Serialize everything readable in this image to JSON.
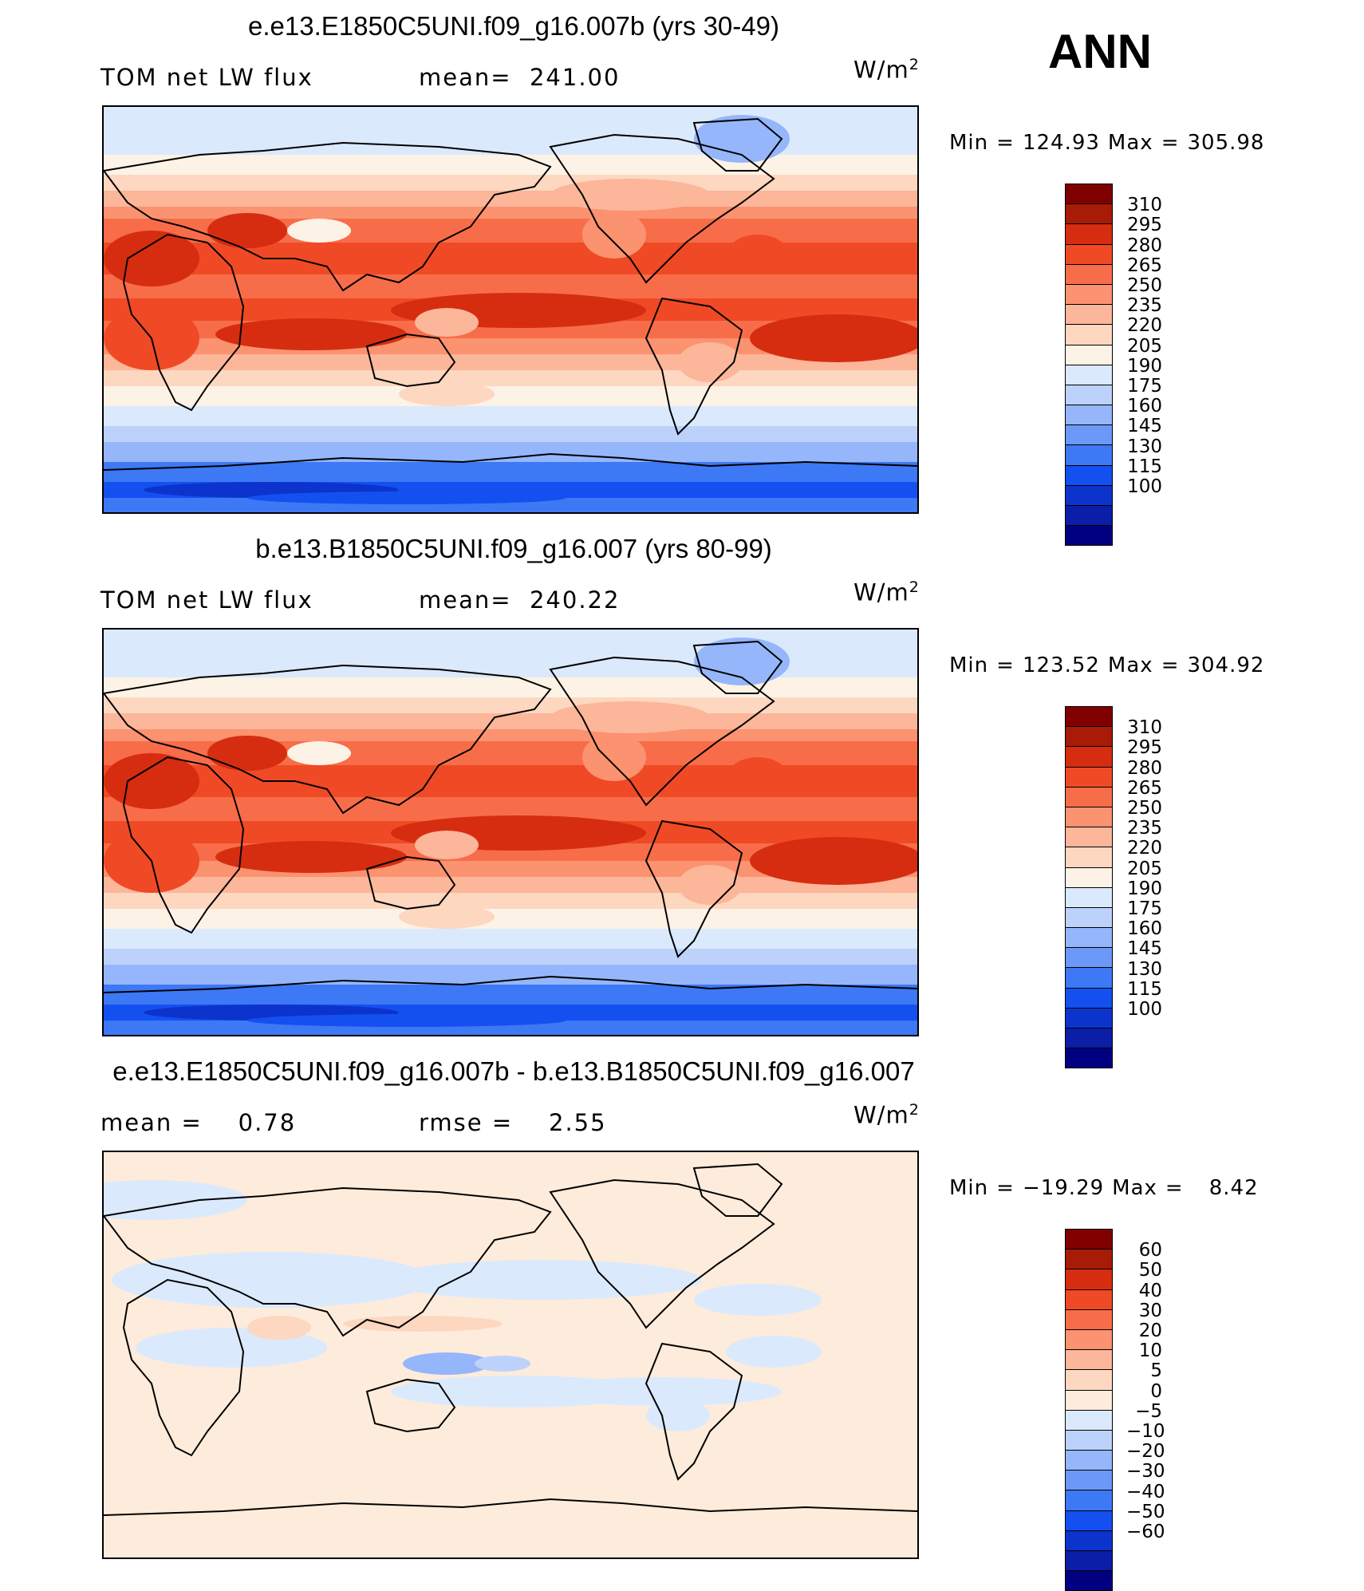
{
  "season_label": "ANN",
  "palette_abs": [
    "#000080",
    "#0a1ea8",
    "#0d33cd",
    "#1450f0",
    "#3d78f5",
    "#6c99f8",
    "#95b6fa",
    "#bcd2fb",
    "#dbe9fc",
    "#fdf2e6",
    "#fdd7c0",
    "#fcb69a",
    "#fb9270",
    "#f86d49",
    "#ef4a25",
    "#d62d10",
    "#a81b06",
    "#800000"
  ],
  "palette_diff": [
    "#000080",
    "#0a1ea8",
    "#0d33cd",
    "#1450f0",
    "#3d78f5",
    "#6c99f8",
    "#95b6fa",
    "#bcd2fb",
    "#dbe9fc",
    "#fdecdb",
    "#fdd7c0",
    "#fcb69a",
    "#fb9270",
    "#f86d49",
    "#ef4a25",
    "#d62d10",
    "#a81b06",
    "#800000"
  ],
  "panels": [
    {
      "title": "e.e13.E1850C5UNI.f09_g16.007b (yrs 30-49)",
      "sub_left": "TOM net LW flux",
      "sub_mid_label": "mean=",
      "sub_mid_value": "241.00",
      "units": "W/m",
      "units_sup": "2",
      "min_label": "Min",
      "min_value": "124.93",
      "max_label": "Max",
      "max_value": "305.98",
      "levels": [
        "310",
        "295",
        "280",
        "265",
        "250",
        "235",
        "220",
        "205",
        "190",
        "175",
        "160",
        "145",
        "130",
        "115",
        "100"
      ],
      "map_mean": 241.0
    },
    {
      "title": "b.e13.B1850C5UNI.f09_g16.007 (yrs 80-99)",
      "sub_left": "TOM net LW flux",
      "sub_mid_label": "mean=",
      "sub_mid_value": "240.22",
      "units": "W/m",
      "units_sup": "2",
      "min_label": "Min",
      "min_value": "123.52",
      "max_label": "Max",
      "max_value": "304.92",
      "levels": [
        "310",
        "295",
        "280",
        "265",
        "250",
        "235",
        "220",
        "205",
        "190",
        "175",
        "160",
        "145",
        "130",
        "115",
        "100"
      ],
      "map_mean": 240.22
    },
    {
      "title": "e.e13.E1850C5UNI.f09_g16.007b - b.e13.B1850C5UNI.f09_g16.007",
      "sub_left": "mean =    0.78",
      "sub_mid_label": "rmse =",
      "sub_mid_value": "2.55",
      "units": "W/m",
      "units_sup": "2",
      "min_label": "Min",
      "min_value": "−19.29",
      "max_label": "Max",
      "max_value": "8.42",
      "levels": [
        "60",
        "50",
        "40",
        "30",
        "20",
        "10",
        "5",
        "0",
        "−5",
        "−10",
        "−20",
        "−30",
        "−40",
        "−50",
        "−60"
      ],
      "map_mean": 0.78
    }
  ]
}
